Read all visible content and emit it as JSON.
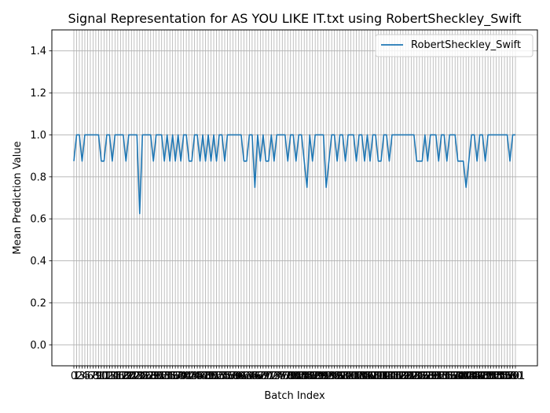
{
  "chart_data": {
    "type": "line",
    "title": "Signal Representation for AS YOU LIKE IT.txt using RobertSheckley_Swift",
    "xlabel": "Batch Index",
    "ylabel": "Mean Prediction Value",
    "ylim": [
      -0.1,
      1.5
    ],
    "yticks": [
      0.0,
      0.2,
      0.4,
      0.6,
      0.8,
      1.0,
      1.2,
      1.4
    ],
    "ytick_labels": [
      "0.0",
      "0.2",
      "0.4",
      "0.6",
      "0.8",
      "1.0",
      "1.2",
      "1.4"
    ],
    "grid": true,
    "legend": "top-right",
    "series": [
      {
        "name": "RobertSheckley_Swift",
        "color": "#1f77b4",
        "values": [
          0.875,
          1,
          1,
          0.875,
          1,
          1,
          1,
          1,
          1,
          1,
          0.875,
          0.875,
          1,
          1,
          0.875,
          1,
          1,
          1,
          1,
          0.875,
          1,
          1,
          1,
          1,
          0.625,
          1,
          1,
          1,
          1,
          0.875,
          1,
          1,
          1,
          0.875,
          1,
          0.875,
          1,
          0.875,
          1,
          0.875,
          1,
          1,
          0.875,
          0.875,
          1,
          1,
          0.875,
          1,
          0.875,
          1,
          0.875,
          1,
          0.875,
          1,
          1,
          0.875,
          1,
          1,
          1,
          1,
          1,
          1,
          0.875,
          0.875,
          1,
          1,
          0.75,
          1,
          0.875,
          1,
          0.875,
          0.875,
          1,
          0.875,
          1,
          1,
          1,
          1,
          0.875,
          1,
          1,
          0.875,
          1,
          1,
          0.875,
          0.75,
          1,
          0.875,
          1,
          1,
          1,
          1,
          0.75,
          0.875,
          1,
          1,
          0.875,
          1,
          1,
          0.875,
          1,
          1,
          1,
          0.875,
          1,
          1,
          0.875,
          1,
          0.875,
          1,
          1,
          0.875,
          0.875,
          1,
          1,
          0.875,
          1,
          1,
          1,
          1,
          1,
          1,
          1,
          1,
          1,
          0.875,
          0.875,
          0.875,
          1,
          0.875,
          1,
          1,
          1,
          0.875,
          1,
          1,
          0.875,
          1,
          1,
          1,
          0.875,
          0.875,
          0.875,
          0.75,
          0.875,
          1,
          1,
          0.875,
          1,
          1,
          0.875,
          1,
          1,
          1,
          1,
          1,
          1,
          1,
          1,
          0.875,
          1,
          1
        ]
      }
    ]
  }
}
